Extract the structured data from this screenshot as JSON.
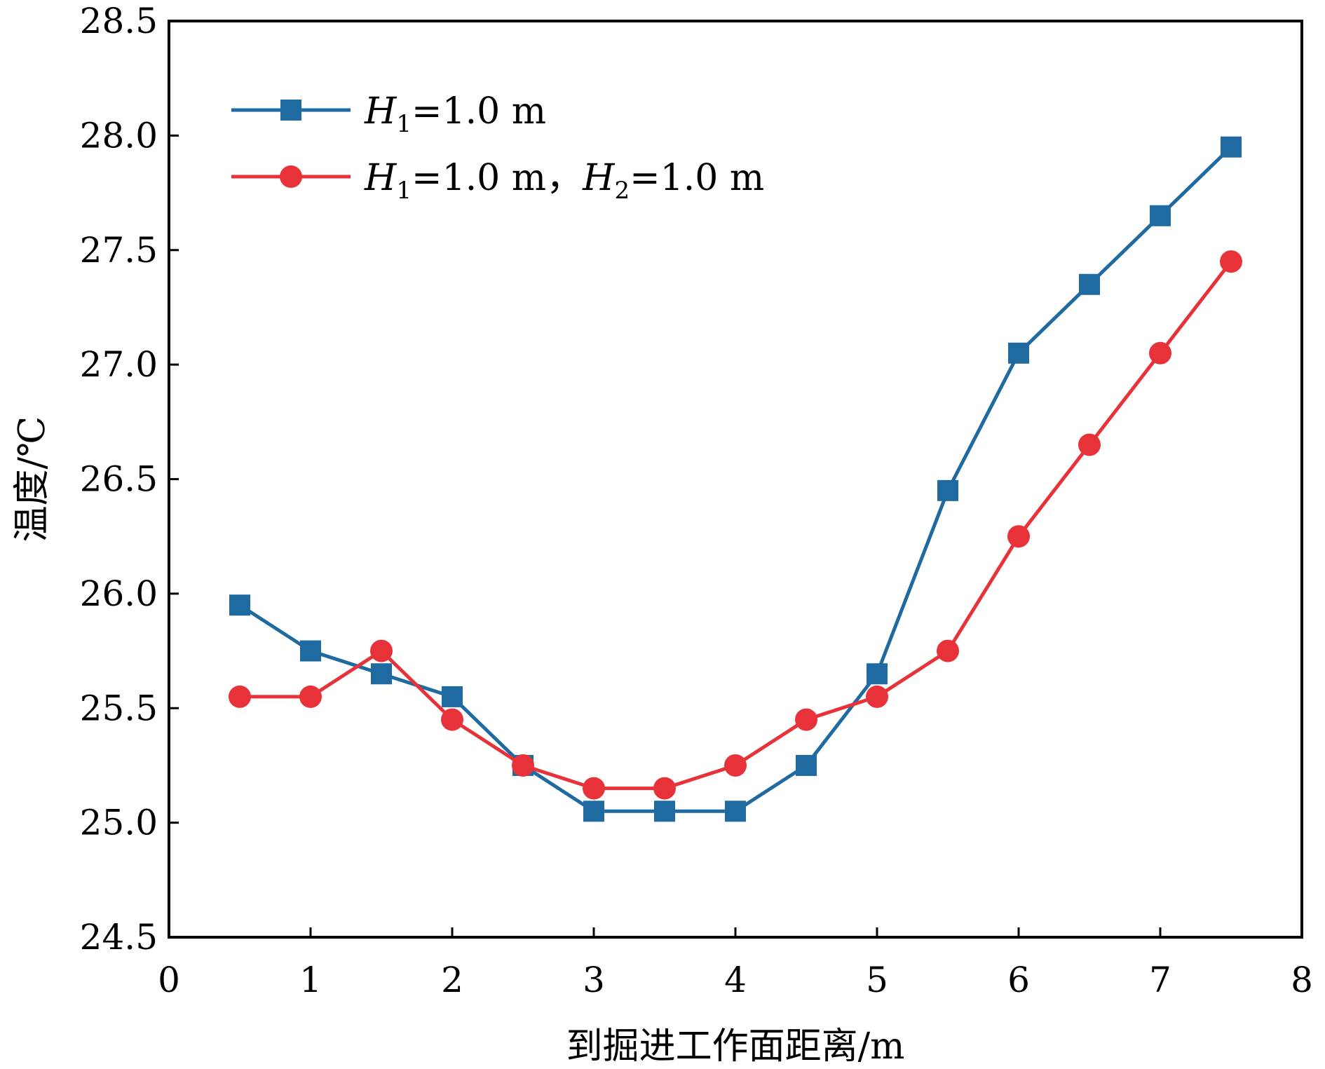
{
  "chart_data": {
    "type": "line",
    "title": "",
    "xlabel": "到掘进工作面距离/m",
    "ylabel": "温度/℃",
    "xlim": [
      0,
      8
    ],
    "ylim": [
      24.5,
      28.5
    ],
    "xticks": [
      0,
      1,
      2,
      3,
      4,
      5,
      6,
      7,
      8
    ],
    "xtick_labels": [
      "0",
      "1",
      "2",
      "3",
      "4",
      "5",
      "6",
      "7",
      "8"
    ],
    "yticks": [
      24.5,
      25.0,
      25.5,
      26.0,
      26.5,
      27.0,
      27.5,
      28.0,
      28.5
    ],
    "ytick_labels": [
      "24.5",
      "25.0",
      "25.5",
      "26.0",
      "26.5",
      "27.0",
      "27.5",
      "28.0",
      "28.5"
    ],
    "grid": false,
    "legend_position": "top-left",
    "x": [
      0.5,
      1.0,
      1.5,
      2.0,
      2.5,
      3.0,
      3.5,
      4.0,
      4.5,
      5.0,
      5.5,
      6.0,
      6.5,
      7.0,
      7.5
    ],
    "series": [
      {
        "name": "H1=1.0 m",
        "legend": {
          "parts": [
            {
              "text": "H",
              "italic": true
            },
            {
              "text": "1",
              "sub": true
            },
            {
              "text": "=1.0 m"
            }
          ]
        },
        "color": "#1f6aa0",
        "marker": "square",
        "values": [
          25.95,
          25.75,
          25.65,
          25.55,
          25.25,
          25.05,
          25.05,
          25.05,
          25.25,
          25.65,
          26.45,
          27.05,
          27.35,
          27.65,
          27.95
        ]
      },
      {
        "name": "H1=1.0 m，H2=1.0 m",
        "legend": {
          "parts": [
            {
              "text": "H",
              "italic": true
            },
            {
              "text": "1",
              "sub": true
            },
            {
              "text": "=1.0 m，"
            },
            {
              "text": "H",
              "italic": true
            },
            {
              "text": "2",
              "sub": true
            },
            {
              "text": "=1.0 m"
            }
          ]
        },
        "color": "#e8323a",
        "marker": "circle",
        "values": [
          25.55,
          25.55,
          25.75,
          25.45,
          25.25,
          25.15,
          25.15,
          25.25,
          25.45,
          25.55,
          25.75,
          26.25,
          26.65,
          27.05,
          27.45
        ]
      }
    ]
  }
}
